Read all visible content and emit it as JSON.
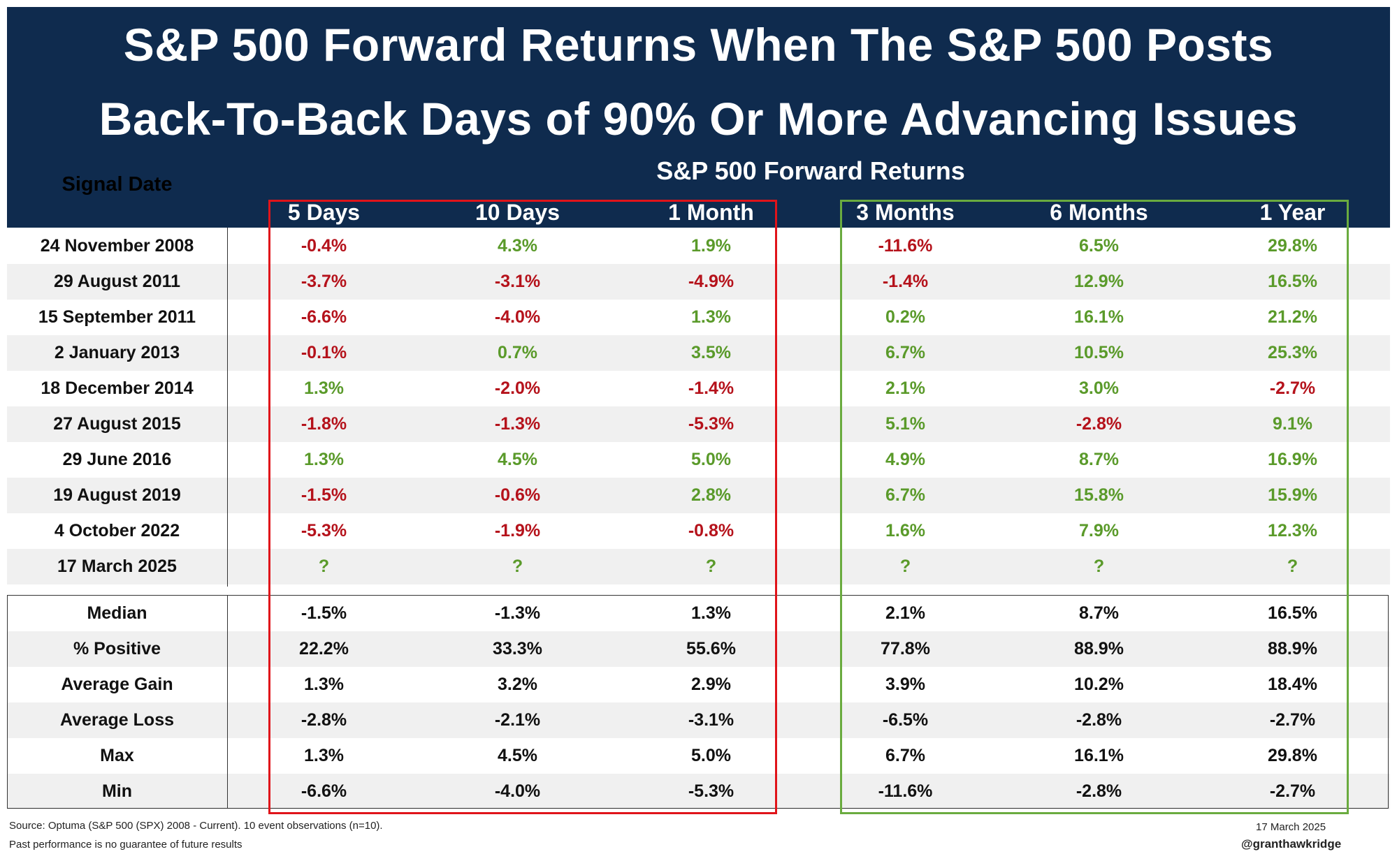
{
  "title_line1": "S&P 500 Forward Returns When The S&P 500 Posts",
  "title_line2": "Back-To-Back Days of 90% Or More Advancing Issues",
  "subtitle": "S&P 500 Forward Returns",
  "signal_date_header": "Signal Date",
  "columns": [
    "5 Days",
    "10 Days",
    "1 Month",
    "3 Months",
    "6 Months",
    "1 Year"
  ],
  "colors": {
    "header_bg": "#0f2b4e",
    "positive": "#5a9a2a",
    "negative": "#b5121b",
    "neutral": "#111111",
    "red_box": "#e0141a",
    "green_box": "#6aab3f"
  },
  "chart_data": {
    "type": "table",
    "title": "S&P 500 Forward Returns When The S&P 500 Posts Back-To-Back Days of 90% Or More Advancing Issues",
    "columns": [
      "5 Days",
      "10 Days",
      "1 Month",
      "3 Months",
      "6 Months",
      "1 Year"
    ],
    "rows": [
      {
        "label": "24 November 2008",
        "values": [
          "-0.4%",
          "4.3%",
          "1.9%",
          "-11.6%",
          "6.5%",
          "29.8%"
        ]
      },
      {
        "label": "29 August 2011",
        "values": [
          "-3.7%",
          "-3.1%",
          "-4.9%",
          "-1.4%",
          "12.9%",
          "16.5%"
        ]
      },
      {
        "label": "15 September 2011",
        "values": [
          "-6.6%",
          "-4.0%",
          "1.3%",
          "0.2%",
          "16.1%",
          "21.2%"
        ]
      },
      {
        "label": "2 January 2013",
        "values": [
          "-0.1%",
          "0.7%",
          "3.5%",
          "6.7%",
          "10.5%",
          "25.3%"
        ]
      },
      {
        "label": "18 December 2014",
        "values": [
          "1.3%",
          "-2.0%",
          "-1.4%",
          "2.1%",
          "3.0%",
          "-2.7%"
        ]
      },
      {
        "label": "27 August 2015",
        "values": [
          "-1.8%",
          "-1.3%",
          "-5.3%",
          "5.1%",
          "-2.8%",
          "9.1%"
        ]
      },
      {
        "label": "29 June 2016",
        "values": [
          "1.3%",
          "4.5%",
          "5.0%",
          "4.9%",
          "8.7%",
          "16.9%"
        ]
      },
      {
        "label": "19 August 2019",
        "values": [
          "-1.5%",
          "-0.6%",
          "2.8%",
          "6.7%",
          "15.8%",
          "15.9%"
        ]
      },
      {
        "label": "4 October 2022",
        "values": [
          "-5.3%",
          "-1.9%",
          "-0.8%",
          "1.6%",
          "7.9%",
          "12.3%"
        ]
      },
      {
        "label": "17 March 2025",
        "values": [
          "?",
          "?",
          "?",
          "?",
          "?",
          "?"
        ]
      }
    ],
    "stats": [
      {
        "label": "Median",
        "values": [
          "-1.5%",
          "-1.3%",
          "1.3%",
          "2.1%",
          "8.7%",
          "16.5%"
        ]
      },
      {
        "label": "% Positive",
        "values": [
          "22.2%",
          "33.3%",
          "55.6%",
          "77.8%",
          "88.9%",
          "88.9%"
        ]
      },
      {
        "label": "Average Gain",
        "values": [
          "1.3%",
          "3.2%",
          "2.9%",
          "3.9%",
          "10.2%",
          "18.4%"
        ]
      },
      {
        "label": "Average Loss",
        "values": [
          "-2.8%",
          "-2.1%",
          "-3.1%",
          "-6.5%",
          "-2.8%",
          "-2.7%"
        ]
      },
      {
        "label": "Max",
        "values": [
          "1.3%",
          "4.5%",
          "5.0%",
          "6.7%",
          "16.1%",
          "29.8%"
        ]
      },
      {
        "label": "Min",
        "values": [
          "-6.6%",
          "-4.0%",
          "-5.3%",
          "-11.6%",
          "-2.8%",
          "-2.7%"
        ]
      }
    ]
  },
  "footer": {
    "source": "Source: Optuma (S&P 500 (SPX) 2008 - Current). 10 event observations (n=10).",
    "disclaimer": "Past performance is no guarantee of future results",
    "date": "17 March 2025",
    "handle": "@granthawkridge"
  }
}
